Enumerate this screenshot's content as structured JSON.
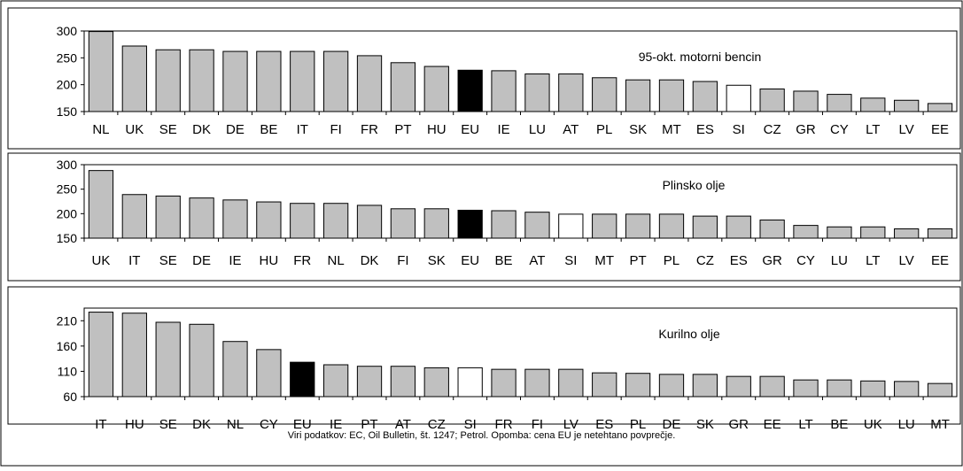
{
  "footnote": "Viri podatkov: EC, Oil Bulletin, št. 1247; Petrol. Opomba: cena EU je netehtano povprečje.",
  "colors": {
    "default": "#c0c0c0",
    "eu": "#000000",
    "si": "#ffffff"
  },
  "chart_data": [
    {
      "type": "bar",
      "title": "95-okt. motorni bencin",
      "ylim": [
        150,
        300
      ],
      "yticks": [
        150,
        200,
        250,
        300
      ],
      "categories": [
        "NL",
        "UK",
        "SE",
        "DK",
        "DE",
        "BE",
        "IT",
        "FI",
        "FR",
        "PT",
        "HU",
        "EU",
        "IE",
        "LU",
        "AT",
        "PL",
        "SK",
        "MT",
        "ES",
        "SI",
        "CZ",
        "GR",
        "CY",
        "LT",
        "LV",
        "EE"
      ],
      "values": [
        299,
        272,
        265,
        265,
        262,
        262,
        262,
        262,
        254,
        241,
        234,
        227,
        226,
        220,
        220,
        213,
        209,
        209,
        206,
        199,
        192,
        188,
        182,
        175,
        171,
        165
      ]
    },
    {
      "type": "bar",
      "title": "Plinsko olje",
      "ylim": [
        150,
        300
      ],
      "yticks": [
        150,
        200,
        250,
        300
      ],
      "categories": [
        "UK",
        "IT",
        "SE",
        "DE",
        "IE",
        "HU",
        "FR",
        "NL",
        "DK",
        "FI",
        "SK",
        "EU",
        "BE",
        "AT",
        "SI",
        "MT",
        "PT",
        "PL",
        "CZ",
        "ES",
        "GR",
        "CY",
        "LU",
        "LT",
        "LV",
        "EE"
      ],
      "values": [
        288,
        239,
        236,
        232,
        228,
        224,
        221,
        221,
        217,
        210,
        210,
        207,
        206,
        203,
        199,
        199,
        199,
        199,
        195,
        195,
        187,
        176,
        173,
        173,
        169,
        169
      ]
    },
    {
      "type": "bar",
      "title": "Kurilno olje",
      "ylim": [
        60,
        235
      ],
      "yticks": [
        60,
        110,
        160,
        210
      ],
      "categories": [
        "IT",
        "HU",
        "SE",
        "DK",
        "NL",
        "CY",
        "EU",
        "IE",
        "PT",
        "AT",
        "CZ",
        "SI",
        "FR",
        "FI",
        "LV",
        "ES",
        "PL",
        "DE",
        "SK",
        "GR",
        "EE",
        "LT",
        "BE",
        "UK",
        "LU",
        "MT"
      ],
      "values": [
        227,
        225,
        207,
        203,
        169,
        153,
        128,
        123,
        120,
        120,
        117,
        117,
        114,
        114,
        114,
        107,
        106,
        104,
        104,
        100,
        100,
        93,
        93,
        91,
        90,
        86
      ]
    }
  ]
}
